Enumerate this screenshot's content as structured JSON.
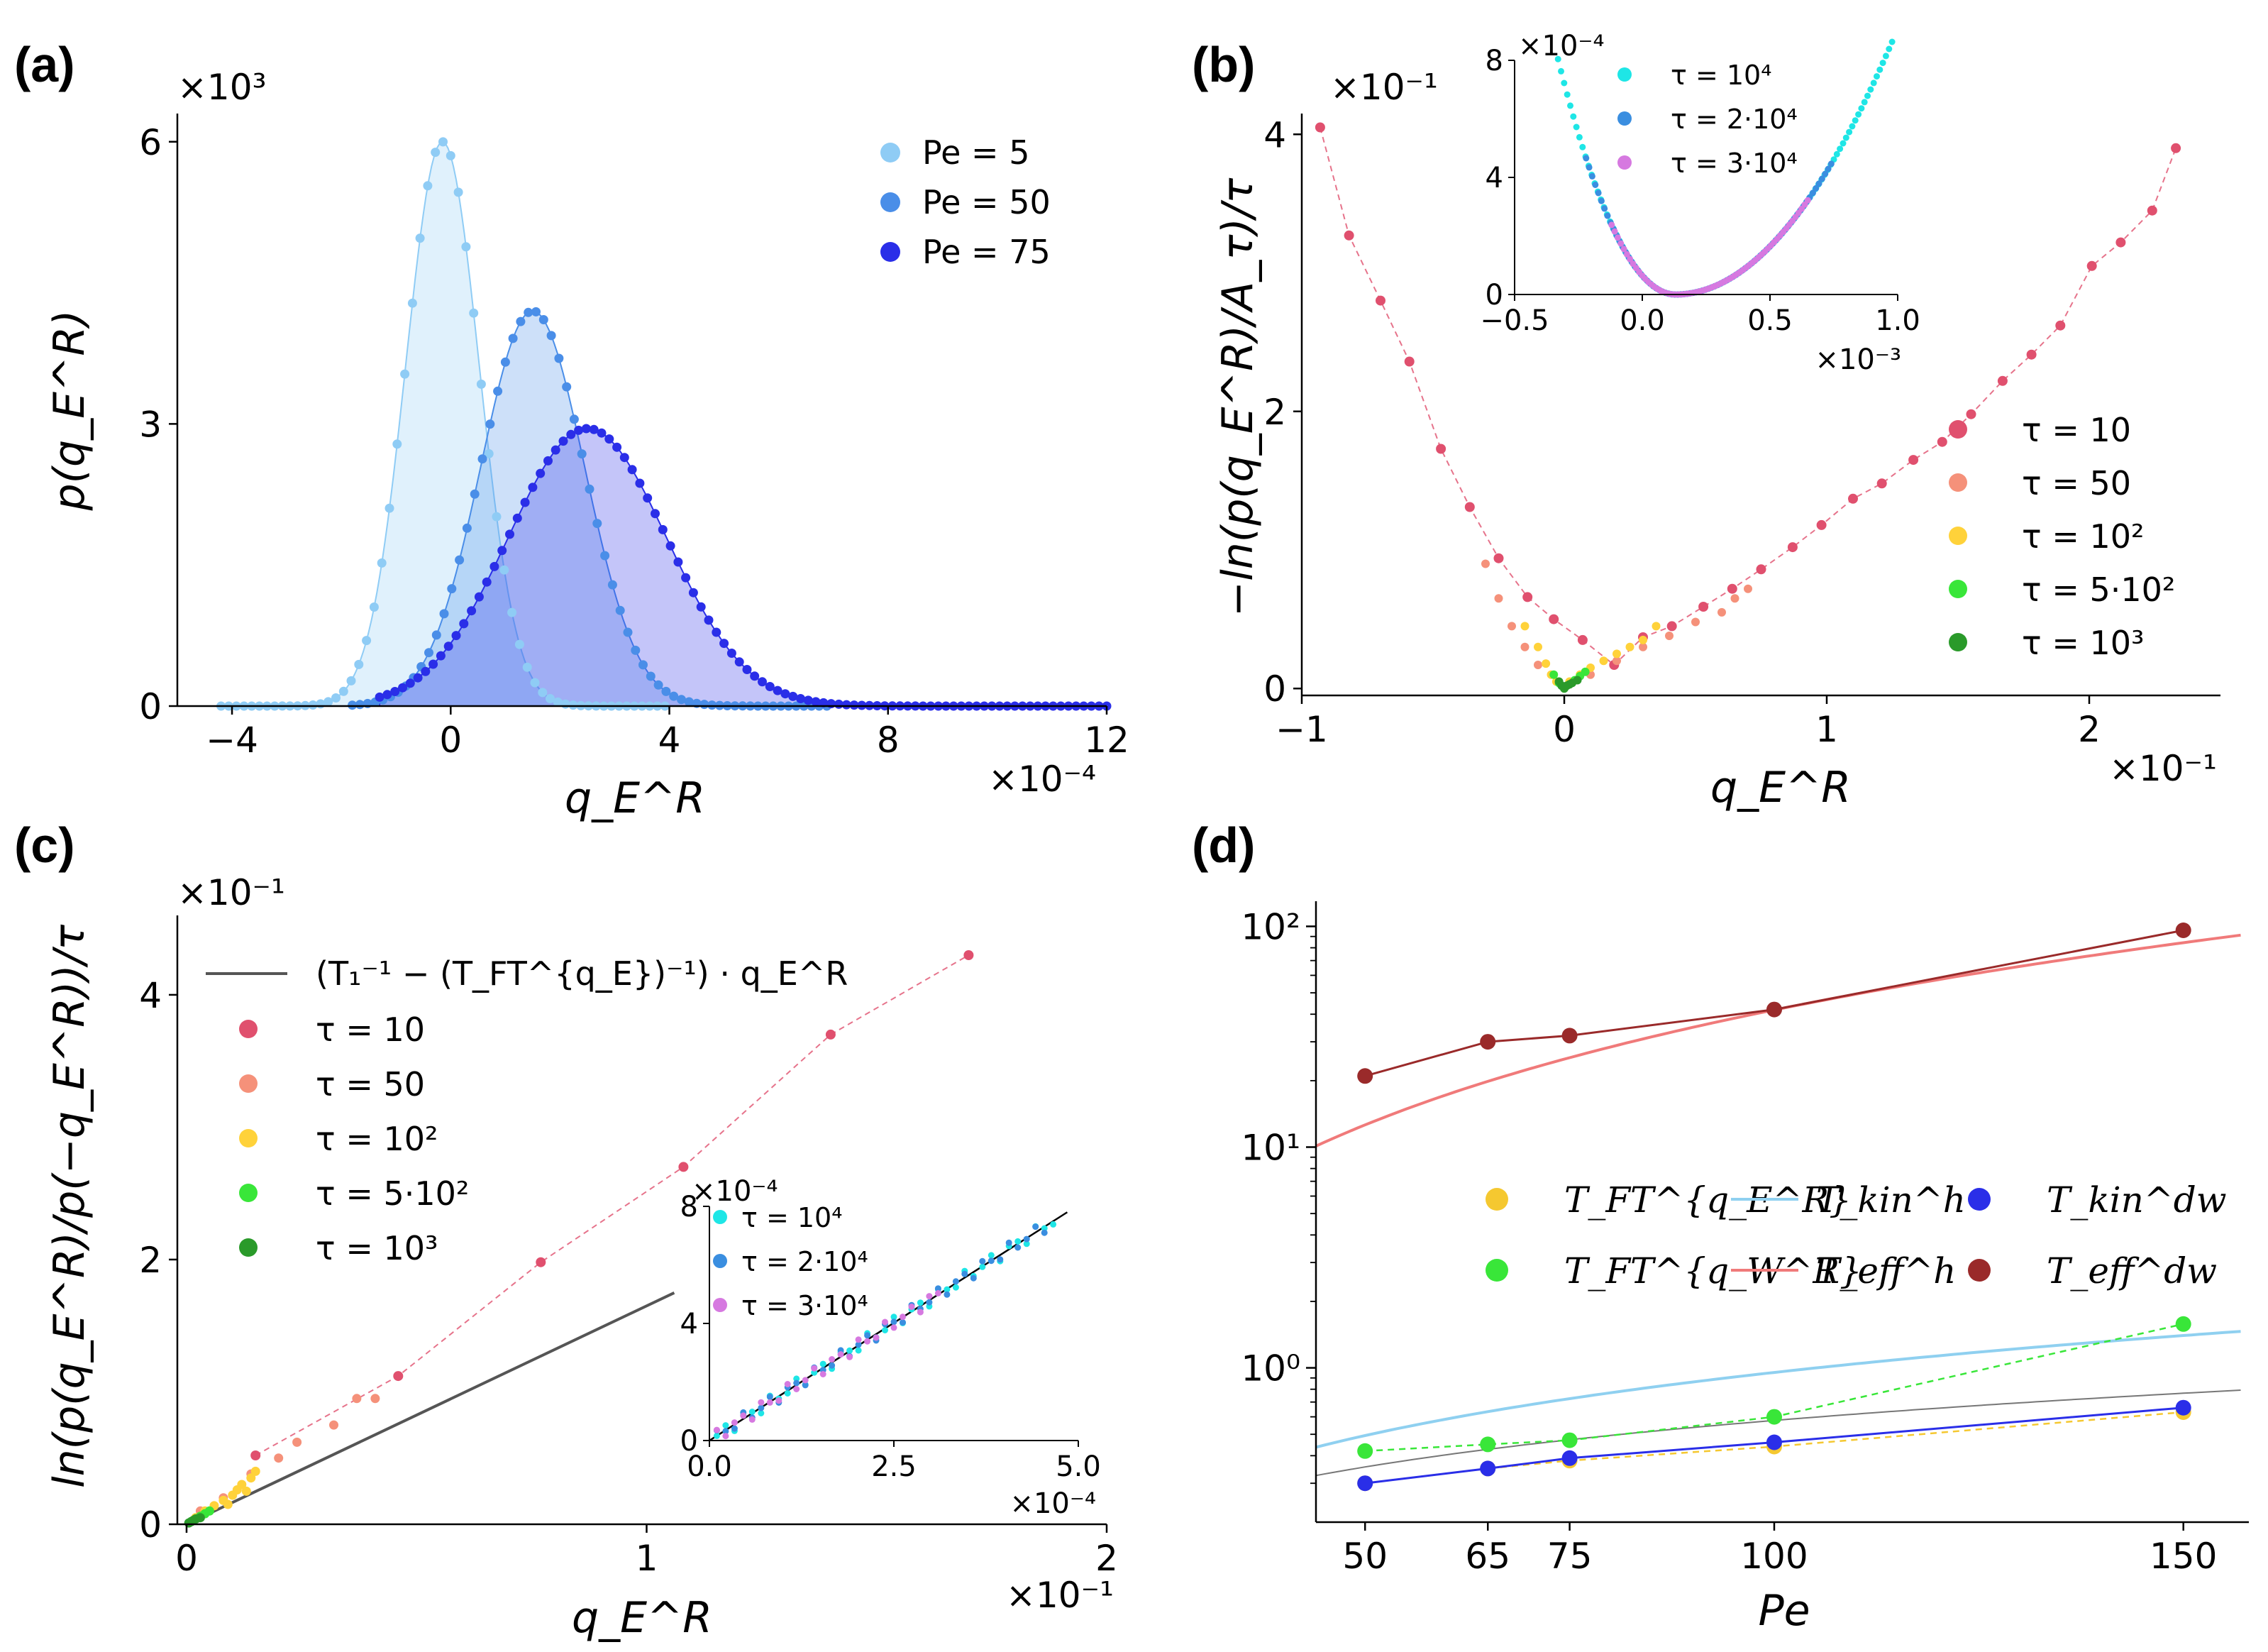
{
  "chart_data": [
    {
      "panel": "(a)",
      "type": "area",
      "xlabel": "q_E^R",
      "ylabel": "p(q_E^R)",
      "x_multiplier": "×10⁻⁴",
      "y_multiplier": "×10³",
      "xlim": [
        -5,
        12
      ],
      "ylim": [
        0,
        6.3
      ],
      "xticks": [
        "−4",
        "0",
        "4",
        "8",
        "12"
      ],
      "yticks": [
        "0",
        "3",
        "6"
      ],
      "legend": "top-right",
      "series": [
        {
          "name": "Pe = 5",
          "color": "#8fccf5",
          "mu": -0.15,
          "sigma": 0.67,
          "peak": 6.0,
          "x": [
            -4.2,
            4.0
          ]
        },
        {
          "name": "Pe = 50",
          "color": "#4a8ee8",
          "mu": 1.5,
          "sigma": 0.95,
          "peak": 4.2,
          "x": [
            -1.8,
            7.0
          ]
        },
        {
          "name": "Pe = 75",
          "color": "#2a2ee8",
          "mu": 2.5,
          "sigma": 1.45,
          "peak": 2.95,
          "x": [
            -1.3,
            12.0
          ]
        }
      ]
    },
    {
      "panel": "(b)",
      "type": "scatter",
      "xlabel": "q_E^R",
      "ylabel": "−ln(p(q_E^R)/A_τ)/τ",
      "x_multiplier": "×10⁻¹",
      "y_multiplier": "×10⁻¹",
      "xlim": [
        -1.0,
        2.5
      ],
      "ylim": [
        -0.05,
        4.15
      ],
      "xticks": [
        "−1",
        "0",
        "1",
        "2"
      ],
      "yticks": [
        "0",
        "2",
        "4"
      ],
      "legend": "bottom-right",
      "series": [
        {
          "name": "τ = 10",
          "color": "#e0506e",
          "points": [
            [
              -0.93,
              4.05
            ],
            [
              -0.82,
              3.27
            ],
            [
              -0.7,
              2.8
            ],
            [
              -0.59,
              2.36
            ],
            [
              -0.47,
              1.73
            ],
            [
              -0.36,
              1.31
            ],
            [
              -0.25,
              0.94
            ],
            [
              -0.14,
              0.66
            ],
            [
              -0.04,
              0.5
            ],
            [
              0.07,
              0.35
            ],
            [
              0.19,
              0.17
            ],
            [
              0.3,
              0.37
            ],
            [
              0.41,
              0.45
            ],
            [
              0.53,
              0.59
            ],
            [
              0.64,
              0.72
            ],
            [
              0.75,
              0.86
            ],
            [
              0.87,
              1.02
            ],
            [
              0.98,
              1.18
            ],
            [
              1.1,
              1.37
            ],
            [
              1.21,
              1.48
            ],
            [
              1.33,
              1.65
            ],
            [
              1.44,
              1.78
            ],
            [
              1.55,
              1.98
            ],
            [
              1.67,
              2.22
            ],
            [
              1.78,
              2.41
            ],
            [
              1.89,
              2.62
            ],
            [
              2.01,
              3.05
            ],
            [
              2.12,
              3.22
            ],
            [
              2.24,
              3.45
            ],
            [
              2.33,
              3.9
            ]
          ]
        },
        {
          "name": "τ = 50",
          "color": "#f5917a",
          "points": [
            [
              -0.3,
              0.9
            ],
            [
              -0.25,
              0.65
            ],
            [
              -0.2,
              0.45
            ],
            [
              -0.15,
              0.3
            ],
            [
              -0.1,
              0.17
            ],
            [
              0.1,
              0.1
            ],
            [
              0.2,
              0.2
            ],
            [
              0.3,
              0.3
            ],
            [
              0.4,
              0.38
            ],
            [
              0.5,
              0.48
            ],
            [
              0.6,
              0.55
            ],
            [
              0.65,
              0.65
            ],
            [
              0.7,
              0.72
            ]
          ]
        },
        {
          "name": "τ = 10²",
          "color": "#ffd23a",
          "points": [
            [
              -0.15,
              0.45
            ],
            [
              -0.1,
              0.3
            ],
            [
              -0.07,
              0.18
            ],
            [
              -0.05,
              0.1
            ],
            [
              -0.03,
              0.05
            ],
            [
              0.02,
              0.05
            ],
            [
              0.06,
              0.1
            ],
            [
              0.1,
              0.15
            ],
            [
              0.15,
              0.2
            ],
            [
              0.2,
              0.25
            ],
            [
              0.25,
              0.3
            ],
            [
              0.3,
              0.35
            ],
            [
              0.35,
              0.45
            ]
          ]
        },
        {
          "name": "τ = 5·10²",
          "color": "#39e639",
          "points": [
            [
              -0.04,
              0.1
            ],
            [
              -0.02,
              0.04
            ],
            [
              0.0,
              0.01
            ],
            [
              0.02,
              0.03
            ],
            [
              0.04,
              0.06
            ],
            [
              0.06,
              0.09
            ],
            [
              0.08,
              0.12
            ]
          ]
        },
        {
          "name": "τ = 10³",
          "color": "#2a9a2a",
          "points": [
            [
              -0.02,
              0.05
            ],
            [
              -0.01,
              0.02
            ],
            [
              0.0,
              0.0
            ],
            [
              0.01,
              0.02
            ],
            [
              0.02,
              0.03
            ],
            [
              0.03,
              0.04
            ],
            [
              0.05,
              0.06
            ]
          ]
        }
      ],
      "inset": {
        "xlim": [
          -0.5,
          1.0
        ],
        "ylim": [
          0,
          8
        ],
        "xticks": [
          "−0.5",
          "0.0",
          "0.5",
          "1.0"
        ],
        "yticks": [
          "0",
          "4",
          "8"
        ],
        "x_multiplier": "×10⁻³",
        "y_multiplier": "×10⁻⁴",
        "series": [
          {
            "name": "τ = 10⁴",
            "color": "#1ee6e6",
            "range": [
              -0.33,
              0.98
            ]
          },
          {
            "name": "τ = 2·10⁴",
            "color": "#3a8ee0",
            "range": [
              -0.22,
              0.75
            ]
          },
          {
            "name": "τ = 3·10⁴",
            "color": "#d679e0",
            "range": [
              -0.12,
              0.65
            ]
          }
        ]
      }
    },
    {
      "panel": "(c)",
      "type": "scatter",
      "xlabel": "q_E^R",
      "ylabel": "ln(p(q_E^R)/p(−q_E^R))/τ",
      "x_multiplier": "×10⁻¹",
      "y_multiplier": "×10⁻¹",
      "xlim": [
        -0.02,
        2.0
      ],
      "ylim": [
        0,
        4.6
      ],
      "xticks": [
        "0",
        "1",
        "2"
      ],
      "yticks": [
        "0",
        "2",
        "4"
      ],
      "legend": "top-left",
      "line": {
        "label": "(T₁⁻¹ − (T_FT^{q_E})⁻¹) · q_E^R",
        "slope": 1.65,
        "xmax": 1.06,
        "color": "#555555"
      },
      "series": [
        {
          "name": "τ = 10",
          "color": "#e0506e",
          "points": [
            [
              0.15,
              0.52
            ],
            [
              0.46,
              1.12
            ],
            [
              0.77,
              1.98
            ],
            [
              1.08,
              2.7
            ],
            [
              1.4,
              3.7
            ],
            [
              1.7,
              4.3
            ]
          ]
        },
        {
          "name": "τ = 50",
          "color": "#f5917a",
          "points": [
            [
              0.03,
              0.1
            ],
            [
              0.08,
              0.2
            ],
            [
              0.14,
              0.38
            ],
            [
              0.2,
              0.5
            ],
            [
              0.24,
              0.62
            ],
            [
              0.32,
              0.75
            ],
            [
              0.37,
              0.95
            ],
            [
              0.41,
              0.95
            ]
          ]
        },
        {
          "name": "τ = 10²",
          "color": "#ffd23a",
          "points": [
            [
              0.02,
              0.05
            ],
            [
              0.04,
              0.1
            ],
            [
              0.06,
              0.14
            ],
            [
              0.08,
              0.18
            ],
            [
              0.1,
              0.22
            ],
            [
              0.11,
              0.26
            ],
            [
              0.12,
              0.3
            ],
            [
              0.14,
              0.35
            ],
            [
              0.15,
              0.4
            ],
            [
              0.13,
              0.25
            ],
            [
              0.09,
              0.15
            ]
          ]
        },
        {
          "name": "τ = 5·10²",
          "color": "#39e639",
          "points": [
            [
              0.01,
              0.02
            ],
            [
              0.02,
              0.04
            ],
            [
              0.03,
              0.06
            ],
            [
              0.04,
              0.08
            ],
            [
              0.05,
              0.1
            ]
          ]
        },
        {
          "name": "τ = 10³",
          "color": "#2a9a2a",
          "points": [
            [
              0.005,
              0.01
            ],
            [
              0.01,
              0.02
            ],
            [
              0.015,
              0.03
            ],
            [
              0.02,
              0.04
            ],
            [
              0.03,
              0.05
            ]
          ]
        }
      ],
      "inset": {
        "xlim": [
          0,
          5.0
        ],
        "ylim": [
          0,
          8
        ],
        "xticks": [
          "0.0",
          "2.5",
          "5.0"
        ],
        "yticks": [
          "0",
          "4",
          "8"
        ],
        "x_multiplier": "×10⁻⁴",
        "y_multiplier": "×10⁻⁴",
        "series": [
          {
            "name": "τ = 10⁴",
            "color": "#1ee6e6",
            "range": [
              0.1,
              4.7
            ]
          },
          {
            "name": "τ = 2·10⁴",
            "color": "#3a8ee0",
            "range": [
              0.1,
              4.6
            ]
          },
          {
            "name": "τ = 3·10⁴",
            "color": "#d679e0",
            "range": [
              0.1,
              3.2
            ]
          }
        ]
      }
    },
    {
      "panel": "(d)",
      "type": "line",
      "xlabel": "Pe",
      "y_scale": "log",
      "xlim": [
        44,
        158
      ],
      "ylim": [
        0.2,
        130
      ],
      "xticks": [
        50,
        65,
        75,
        100,
        150
      ],
      "yticks": [
        "10⁰",
        "10¹",
        "10²"
      ],
      "legend": "center",
      "series": [
        {
          "name": "T_FT^{q_E^R}",
          "color": "#f5c830",
          "x": [
            50,
            65,
            75,
            100,
            150
          ],
          "y": [
            0.3,
            0.35,
            0.38,
            0.44,
            0.63
          ]
        },
        {
          "name": "T_FT^{q_W^R}",
          "color": "#39e639",
          "x": [
            50,
            65,
            75,
            100,
            150
          ],
          "y": [
            0.42,
            0.45,
            0.47,
            0.6,
            1.58
          ]
        },
        {
          "name": "T_kin^h",
          "color": "#8fd0f0"
        },
        {
          "name": "T_eff^h",
          "color": "#f07a7a"
        },
        {
          "name": "T_kin^dw",
          "color": "#2a2ee8",
          "x": [
            50,
            65,
            75,
            100,
            150
          ],
          "y": [
            0.3,
            0.35,
            0.39,
            0.46,
            0.66
          ]
        },
        {
          "name": "T_eff^dw",
          "color": "#9a2a2a",
          "x": [
            50,
            65,
            75,
            100,
            150
          ],
          "y": [
            21,
            30,
            32,
            42,
            96
          ]
        }
      ],
      "curves": [
        {
          "color": "#8fd0f0",
          "a": 0.012,
          "p": 0.95,
          "x": [
            44,
            157
          ]
        },
        {
          "color": "#f07a7a",
          "a": 0.0145,
          "p": 1.73,
          "x": [
            44,
            157
          ]
        },
        {
          "color": "#777777",
          "a": 0.023,
          "p": 0.7,
          "x": [
            44,
            157
          ]
        }
      ]
    }
  ]
}
